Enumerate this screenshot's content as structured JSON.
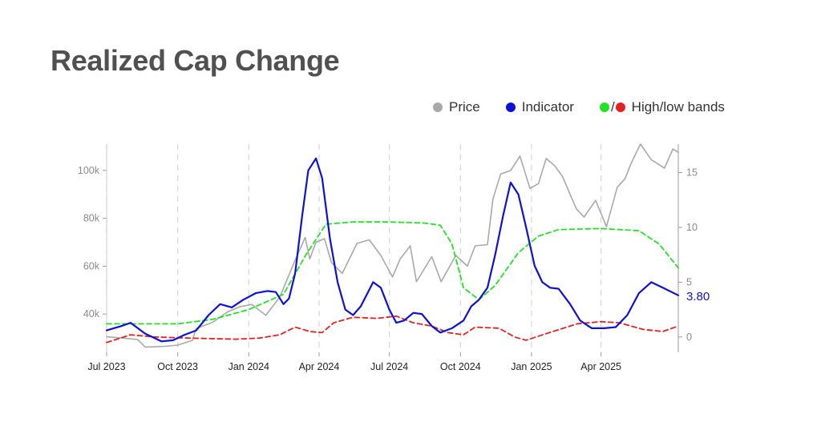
{
  "title": "Realized Cap Change",
  "legend": {
    "price": {
      "label": "Price",
      "color": "#a9a9a9"
    },
    "indicator": {
      "label": "Indicator",
      "color": "#0d10d9"
    },
    "bands": {
      "label": "High/low bands",
      "high_color": "#22e322",
      "low_color": "#e32222",
      "separator": "/"
    }
  },
  "colors": {
    "axis": "#999999",
    "grid": "#d6d6d6"
  },
  "chart_data": {
    "type": "line",
    "x_ticks": [
      "Jul 2023",
      "Oct 2023",
      "Jan 2024",
      "Apr 2024",
      "Jul 2024",
      "Oct 2024",
      "Jan 2025",
      "Apr 2025"
    ],
    "x_range": [
      "2023-07-01",
      "2025-07-10"
    ],
    "y_left": {
      "ticks": [
        40000,
        60000,
        80000,
        100000
      ],
      "tick_labels": [
        "40k",
        "60k",
        "80k",
        "100k"
      ],
      "range": [
        24000,
        111000
      ]
    },
    "y_right": {
      "ticks": [
        0,
        5,
        10,
        15
      ],
      "tick_labels": [
        "0",
        "5",
        "10",
        "15"
      ],
      "range": [
        -1.4,
        17.6
      ]
    },
    "grid": "vertical dashed at x ticks",
    "last_value_label": "3.80",
    "series": [
      {
        "name": "Price",
        "axis": "left",
        "style": "solid",
        "points": [
          [
            "2023-07-01",
            30500
          ],
          [
            "2023-07-20",
            30000
          ],
          [
            "2023-08-10",
            29400
          ],
          [
            "2023-08-20",
            26200
          ],
          [
            "2023-09-15",
            26500
          ],
          [
            "2023-10-01",
            27000
          ],
          [
            "2023-10-20",
            29000
          ],
          [
            "2023-10-25",
            34000
          ],
          [
            "2023-11-15",
            36500
          ],
          [
            "2023-12-05",
            41000
          ],
          [
            "2023-12-20",
            43000
          ],
          [
            "2024-01-05",
            44000
          ],
          [
            "2024-01-23",
            39500
          ],
          [
            "2024-02-10",
            47000
          ],
          [
            "2024-02-28",
            61000
          ],
          [
            "2024-03-14",
            72000
          ],
          [
            "2024-03-20",
            63000
          ],
          [
            "2024-03-28",
            70000
          ],
          [
            "2024-04-08",
            71500
          ],
          [
            "2024-04-17",
            61500
          ],
          [
            "2024-05-01",
            57000
          ],
          [
            "2024-05-20",
            69500
          ],
          [
            "2024-06-05",
            71000
          ],
          [
            "2024-06-20",
            64500
          ],
          [
            "2024-07-05",
            55500
          ],
          [
            "2024-07-15",
            63000
          ],
          [
            "2024-07-28",
            68500
          ],
          [
            "2024-08-05",
            53500
          ],
          [
            "2024-08-25",
            64000
          ],
          [
            "2024-09-06",
            53500
          ],
          [
            "2024-09-25",
            64500
          ],
          [
            "2024-10-10",
            60000
          ],
          [
            "2024-10-20",
            68500
          ],
          [
            "2024-11-05",
            69000
          ],
          [
            "2024-11-12",
            88000
          ],
          [
            "2024-11-22",
            98500
          ],
          [
            "2024-12-05",
            100000
          ],
          [
            "2024-12-17",
            106000
          ],
          [
            "2024-12-30",
            92500
          ],
          [
            "2025-01-10",
            94500
          ],
          [
            "2025-01-20",
            105000
          ],
          [
            "2025-01-31",
            102000
          ],
          [
            "2025-02-10",
            97500
          ],
          [
            "2025-02-28",
            84000
          ],
          [
            "2025-03-10",
            80500
          ],
          [
            "2025-03-25",
            87500
          ],
          [
            "2025-04-08",
            76500
          ],
          [
            "2025-04-22",
            93000
          ],
          [
            "2025-05-02",
            96500
          ],
          [
            "2025-05-10",
            103000
          ],
          [
            "2025-05-22",
            111000
          ],
          [
            "2025-06-05",
            104500
          ],
          [
            "2025-06-22",
            101000
          ],
          [
            "2025-07-03",
            109000
          ],
          [
            "2025-07-10",
            107500
          ]
        ]
      },
      {
        "name": "Indicator",
        "axis": "right",
        "style": "solid",
        "points": [
          [
            "2023-07-01",
            0.6
          ],
          [
            "2023-07-20",
            1.0
          ],
          [
            "2023-08-01",
            1.3
          ],
          [
            "2023-08-20",
            0.3
          ],
          [
            "2023-09-10",
            -0.4
          ],
          [
            "2023-09-25",
            -0.3
          ],
          [
            "2023-10-10",
            0.2
          ],
          [
            "2023-10-25",
            0.6
          ],
          [
            "2023-11-10",
            2.0
          ],
          [
            "2023-11-25",
            3.0
          ],
          [
            "2023-12-10",
            2.7
          ],
          [
            "2023-12-25",
            3.4
          ],
          [
            "2024-01-10",
            4.0
          ],
          [
            "2024-01-25",
            4.2
          ],
          [
            "2024-02-05",
            4.1
          ],
          [
            "2024-02-15",
            3.0
          ],
          [
            "2024-02-22",
            3.5
          ],
          [
            "2024-03-01",
            5.8
          ],
          [
            "2024-03-10",
            11.0
          ],
          [
            "2024-03-18",
            15.2
          ],
          [
            "2024-03-28",
            16.3
          ],
          [
            "2024-04-05",
            14.5
          ],
          [
            "2024-04-15",
            9.0
          ],
          [
            "2024-04-25",
            5.0
          ],
          [
            "2024-05-05",
            2.5
          ],
          [
            "2024-05-15",
            2.0
          ],
          [
            "2024-05-25",
            2.8
          ],
          [
            "2024-06-10",
            5.0
          ],
          [
            "2024-06-20",
            4.5
          ],
          [
            "2024-07-01",
            2.5
          ],
          [
            "2024-07-10",
            1.3
          ],
          [
            "2024-07-20",
            1.5
          ],
          [
            "2024-08-01",
            2.2
          ],
          [
            "2024-08-12",
            2.1
          ],
          [
            "2024-08-25",
            1.0
          ],
          [
            "2024-09-05",
            0.4
          ],
          [
            "2024-09-20",
            0.8
          ],
          [
            "2024-10-05",
            1.5
          ],
          [
            "2024-10-15",
            2.8
          ],
          [
            "2024-10-25",
            3.4
          ],
          [
            "2024-11-05",
            4.5
          ],
          [
            "2024-11-15",
            7.5
          ],
          [
            "2024-11-25",
            11.0
          ],
          [
            "2024-12-05",
            14.1
          ],
          [
            "2024-12-15",
            13.0
          ],
          [
            "2024-12-25",
            10.0
          ],
          [
            "2025-01-05",
            6.5
          ],
          [
            "2025-01-15",
            5.0
          ],
          [
            "2025-01-25",
            4.5
          ],
          [
            "2025-02-05",
            4.4
          ],
          [
            "2025-02-20",
            3.0
          ],
          [
            "2025-03-05",
            1.5
          ],
          [
            "2025-03-20",
            0.8
          ],
          [
            "2025-04-05",
            0.8
          ],
          [
            "2025-04-20",
            0.9
          ],
          [
            "2025-05-05",
            2.0
          ],
          [
            "2025-05-20",
            4.0
          ],
          [
            "2025-06-05",
            5.0
          ],
          [
            "2025-06-20",
            4.5
          ],
          [
            "2025-07-10",
            3.8
          ]
        ]
      },
      {
        "name": "High band",
        "axis": "right",
        "style": "dashed",
        "points": [
          [
            "2023-07-01",
            1.2
          ],
          [
            "2023-10-01",
            1.2
          ],
          [
            "2023-11-15",
            1.6
          ],
          [
            "2024-01-01",
            2.5
          ],
          [
            "2024-02-15",
            3.9
          ],
          [
            "2024-03-15",
            7.5
          ],
          [
            "2024-04-10",
            10.3
          ],
          [
            "2024-05-15",
            10.5
          ],
          [
            "2024-07-01",
            10.5
          ],
          [
            "2024-08-15",
            10.4
          ],
          [
            "2024-09-05",
            10.2
          ],
          [
            "2024-09-20",
            8.5
          ],
          [
            "2024-10-05",
            4.5
          ],
          [
            "2024-10-25",
            3.4
          ],
          [
            "2024-11-15",
            4.7
          ],
          [
            "2024-12-15",
            7.7
          ],
          [
            "2025-01-10",
            9.2
          ],
          [
            "2025-02-05",
            9.8
          ],
          [
            "2025-04-01",
            9.9
          ],
          [
            "2025-05-20",
            9.7
          ],
          [
            "2025-06-15",
            8.5
          ],
          [
            "2025-07-10",
            6.3
          ]
        ]
      },
      {
        "name": "Low band",
        "axis": "right",
        "style": "dashed",
        "points": [
          [
            "2023-07-01",
            -0.5
          ],
          [
            "2023-08-01",
            0.2
          ],
          [
            "2023-09-01",
            0.0
          ],
          [
            "2023-10-15",
            -0.1
          ],
          [
            "2023-12-15",
            -0.2
          ],
          [
            "2024-01-15",
            -0.1
          ],
          [
            "2024-02-10",
            0.2
          ],
          [
            "2024-03-01",
            0.9
          ],
          [
            "2024-03-20",
            0.5
          ],
          [
            "2024-04-05",
            0.4
          ],
          [
            "2024-04-20",
            1.3
          ],
          [
            "2024-05-15",
            1.8
          ],
          [
            "2024-06-15",
            1.7
          ],
          [
            "2024-07-10",
            1.9
          ],
          [
            "2024-08-01",
            1.3
          ],
          [
            "2024-08-25",
            1.0
          ],
          [
            "2024-09-15",
            0.4
          ],
          [
            "2024-10-05",
            0.2
          ],
          [
            "2024-10-20",
            0.9
          ],
          [
            "2024-11-20",
            0.8
          ],
          [
            "2024-12-10",
            0.0
          ],
          [
            "2024-12-25",
            -0.3
          ],
          [
            "2025-01-20",
            0.3
          ],
          [
            "2025-03-01",
            1.2
          ],
          [
            "2025-04-01",
            1.4
          ],
          [
            "2025-04-25",
            1.3
          ],
          [
            "2025-05-25",
            0.7
          ],
          [
            "2025-06-20",
            0.5
          ],
          [
            "2025-07-10",
            1.0
          ]
        ]
      }
    ]
  }
}
